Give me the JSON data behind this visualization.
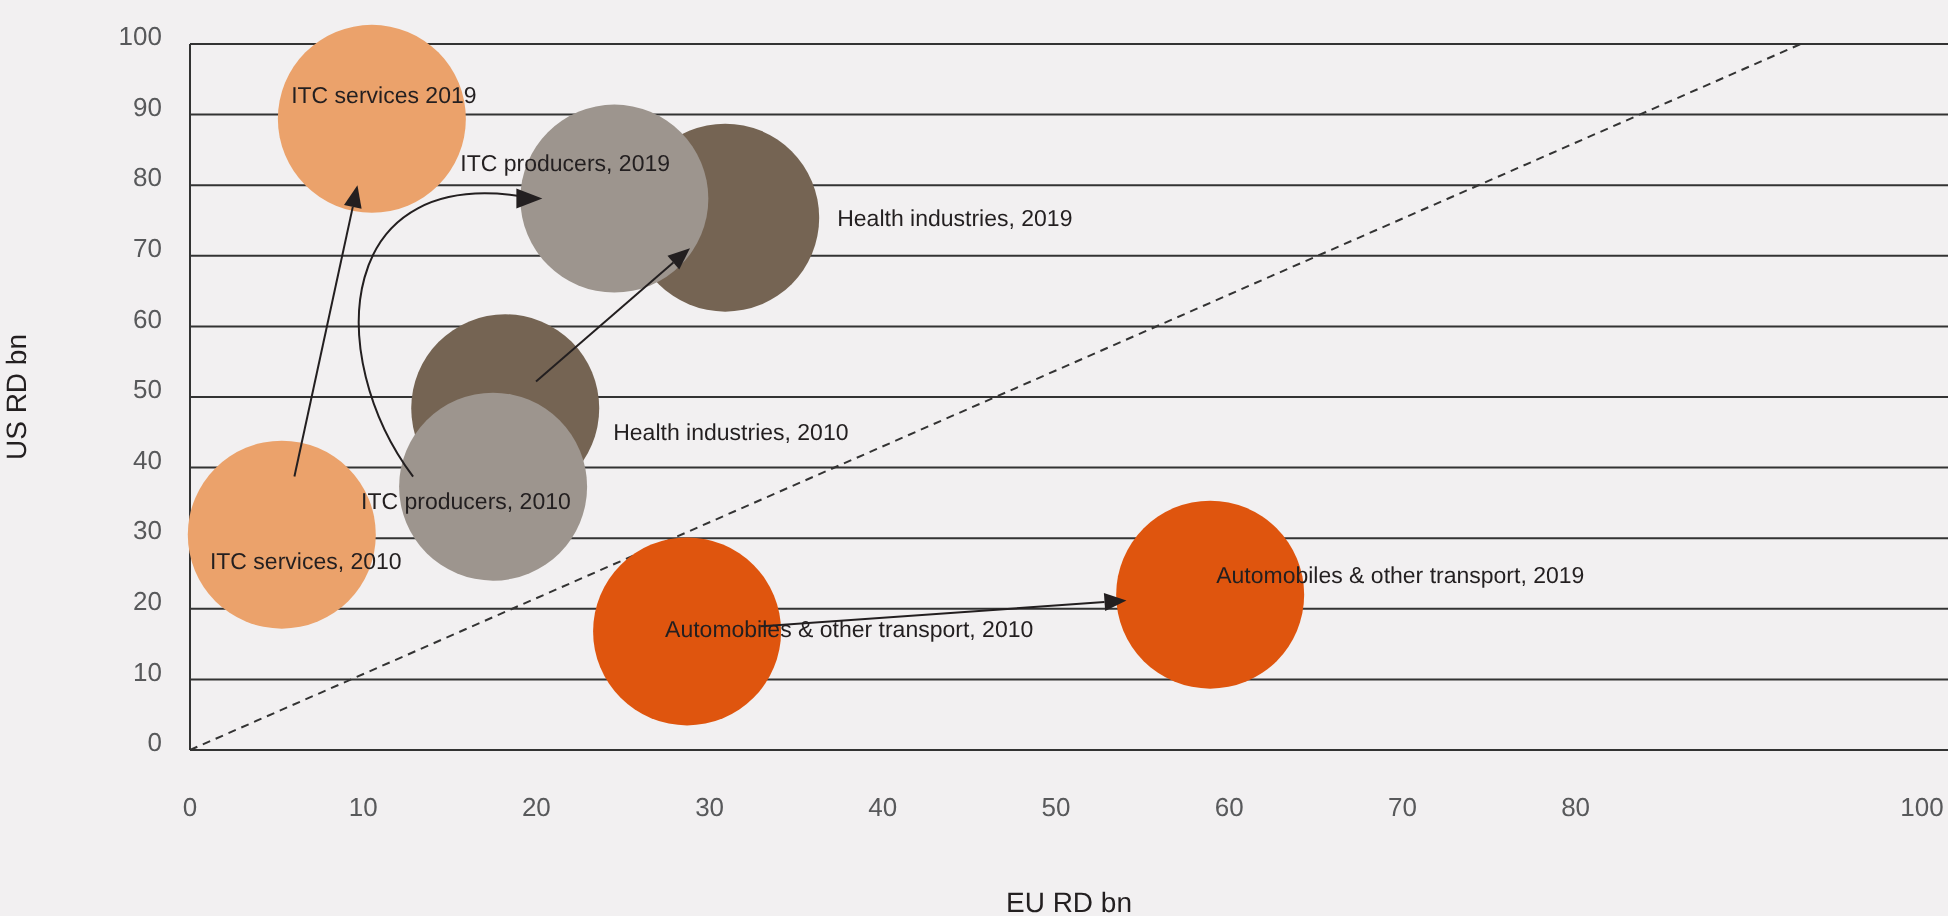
{
  "chart_data": {
    "type": "bubble",
    "xlabel": "EU RD bn",
    "ylabel": "US RD bn",
    "xlim": [
      0,
      101.5
    ],
    "ylim": [
      0,
      100
    ],
    "xticks": [
      0,
      10,
      20,
      30,
      40,
      50,
      60,
      70,
      80,
      100
    ],
    "yticks": [
      0,
      10,
      20,
      30,
      40,
      50,
      60,
      70,
      80,
      90,
      100
    ],
    "grid": "y",
    "legend": false,
    "series": [
      {
        "name": "ITC services, 2010",
        "color": "#eba26b",
        "x": [
          5.3
        ],
        "values": [
          30.5
        ],
        "sizes": [
          1
        ]
      },
      {
        "name": "ITC services 2019",
        "color": "#eba26b",
        "x": [
          10.5
        ],
        "values": [
          89.4
        ],
        "sizes": [
          1
        ]
      },
      {
        "name": "Health industries, 2010",
        "color": "#756453",
        "x": [
          18.2
        ],
        "values": [
          48.4
        ],
        "sizes": [
          1
        ]
      },
      {
        "name": "Health industries, 2019",
        "color": "#756453",
        "x": [
          30.9
        ],
        "values": [
          75.4
        ],
        "sizes": [
          1
        ]
      },
      {
        "name": "ITC producers, 2010",
        "color": "#9d958e",
        "x": [
          17.5
        ],
        "values": [
          37.3
        ],
        "sizes": [
          1
        ]
      },
      {
        "name": "ITC producers, 2019",
        "color": "#9d958e",
        "x": [
          24.5
        ],
        "values": [
          78.1
        ],
        "sizes": [
          1
        ]
      },
      {
        "name": "Automobiles & other transport, 2010",
        "color": "#df550e",
        "x": [
          28.7
        ],
        "values": [
          16.8
        ],
        "sizes": [
          1
        ]
      },
      {
        "name": "Automobiles & other transport, 2019",
        "color": "#df550e",
        "x": [
          58.9
        ],
        "values": [
          22.0
        ],
        "sizes": [
          1
        ]
      },
      {
        "type": "line",
        "color": "#333333",
        "line_style": "dashed",
        "marker": "none",
        "x": [
          0,
          93
        ],
        "values": [
          0,
          100
        ]
      }
    ]
  }
}
